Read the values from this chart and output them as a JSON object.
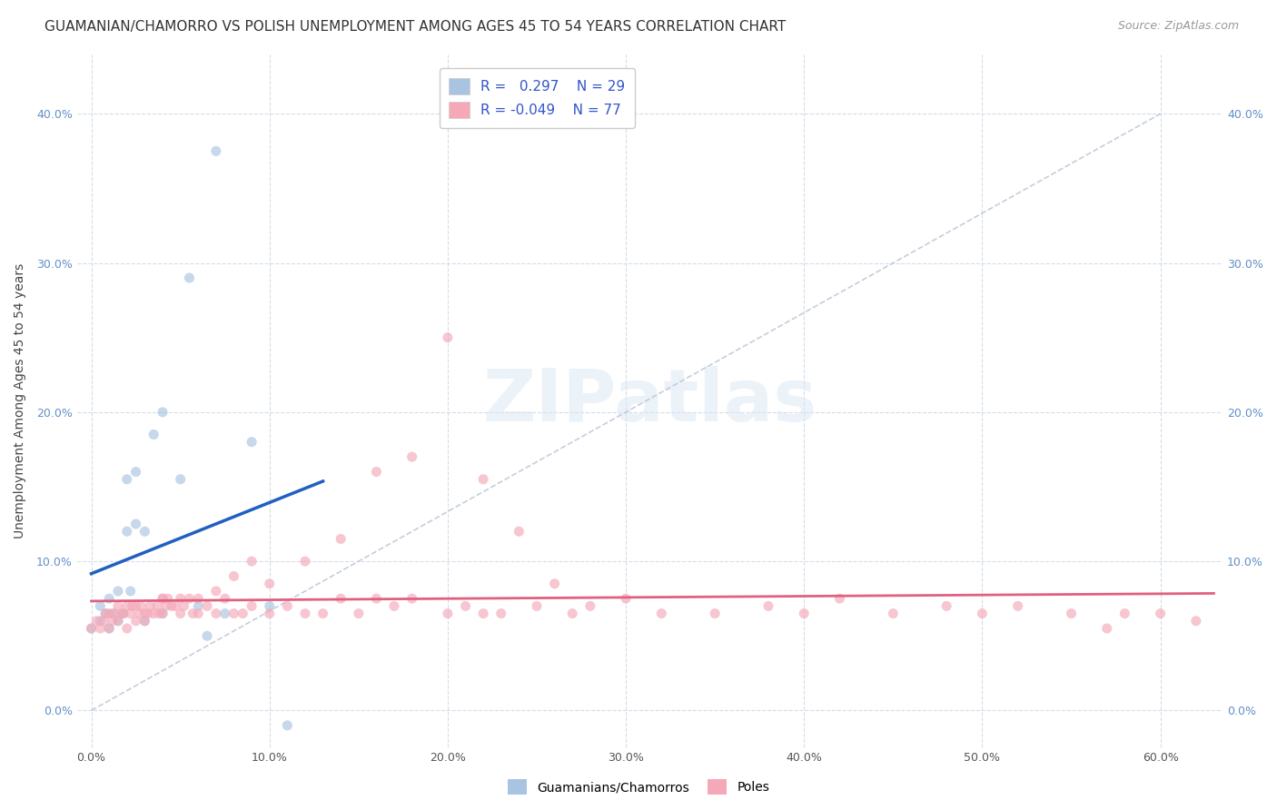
{
  "title": "GUAMANIAN/CHAMORRO VS POLISH UNEMPLOYMENT AMONG AGES 45 TO 54 YEARS CORRELATION CHART",
  "source": "Source: ZipAtlas.com",
  "ylabel": "Unemployment Among Ages 45 to 54 years",
  "ytick_labels": [
    "0.0%",
    "10.0%",
    "20.0%",
    "30.0%",
    "40.0%"
  ],
  "yticks": [
    0.0,
    0.1,
    0.2,
    0.3,
    0.4
  ],
  "xtick_labels": [
    "0.0%",
    "10.0%",
    "20.0%",
    "30.0%",
    "40.0%",
    "50.0%",
    "60.0%"
  ],
  "xticks": [
    0.0,
    0.1,
    0.2,
    0.3,
    0.4,
    0.5,
    0.6
  ],
  "ylim": [
    -0.025,
    0.44
  ],
  "xlim": [
    -0.008,
    0.635
  ],
  "guamanian_color": "#a8c4e0",
  "polish_color": "#f4a8b8",
  "trend_guamanian_color": "#2060c0",
  "trend_polish_color": "#e06080",
  "diagonal_color": "#c0c8d8",
  "background_color": "#ffffff",
  "grid_color": "#d0d8e8",
  "legend_R_guamanian": "0.297",
  "legend_N_guamanian": "29",
  "legend_R_polish": "-0.049",
  "legend_N_polish": "77",
  "watermark": "ZIPatlas",
  "guamanian_x": [
    0.0,
    0.005,
    0.005,
    0.008,
    0.01,
    0.01,
    0.012,
    0.015,
    0.015,
    0.018,
    0.02,
    0.02,
    0.022,
    0.025,
    0.025,
    0.03,
    0.03,
    0.035,
    0.04,
    0.04,
    0.05,
    0.055,
    0.06,
    0.065,
    0.07,
    0.075,
    0.09,
    0.1,
    0.11
  ],
  "guamanian_y": [
    0.055,
    0.06,
    0.07,
    0.065,
    0.055,
    0.075,
    0.065,
    0.06,
    0.08,
    0.065,
    0.12,
    0.155,
    0.08,
    0.125,
    0.16,
    0.06,
    0.12,
    0.185,
    0.065,
    0.2,
    0.155,
    0.29,
    0.07,
    0.05,
    0.375,
    0.065,
    0.18,
    0.07,
    -0.01
  ],
  "polish_x": [
    0.0,
    0.003,
    0.005,
    0.007,
    0.008,
    0.01,
    0.01,
    0.012,
    0.013,
    0.015,
    0.015,
    0.017,
    0.018,
    0.02,
    0.02,
    0.022,
    0.023,
    0.025,
    0.025,
    0.027,
    0.028,
    0.03,
    0.03,
    0.032,
    0.033,
    0.035,
    0.037,
    0.038,
    0.04,
    0.04,
    0.042,
    0.043,
    0.045,
    0.047,
    0.05,
    0.05,
    0.052,
    0.055,
    0.057,
    0.06,
    0.06,
    0.065,
    0.07,
    0.075,
    0.08,
    0.085,
    0.09,
    0.1,
    0.11,
    0.12,
    0.13,
    0.14,
    0.15,
    0.16,
    0.17,
    0.18,
    0.2,
    0.21,
    0.22,
    0.23,
    0.25,
    0.27,
    0.3,
    0.32,
    0.35,
    0.38,
    0.4,
    0.42,
    0.45,
    0.48,
    0.5,
    0.52,
    0.55,
    0.57,
    0.58,
    0.6,
    0.62
  ],
  "polish_y": [
    0.055,
    0.06,
    0.055,
    0.06,
    0.065,
    0.055,
    0.065,
    0.06,
    0.065,
    0.06,
    0.07,
    0.065,
    0.065,
    0.055,
    0.07,
    0.065,
    0.07,
    0.06,
    0.07,
    0.065,
    0.07,
    0.06,
    0.065,
    0.065,
    0.07,
    0.065,
    0.07,
    0.065,
    0.065,
    0.075,
    0.07,
    0.075,
    0.07,
    0.07,
    0.065,
    0.075,
    0.07,
    0.075,
    0.065,
    0.065,
    0.075,
    0.07,
    0.065,
    0.075,
    0.065,
    0.065,
    0.07,
    0.065,
    0.07,
    0.065,
    0.065,
    0.075,
    0.065,
    0.075,
    0.07,
    0.075,
    0.065,
    0.07,
    0.065,
    0.065,
    0.07,
    0.065,
    0.075,
    0.065,
    0.065,
    0.07,
    0.065,
    0.075,
    0.065,
    0.07,
    0.065,
    0.07,
    0.065,
    0.055,
    0.065,
    0.065,
    0.06
  ],
  "polish_x_extra": [
    0.04,
    0.07,
    0.08,
    0.09,
    0.1,
    0.12,
    0.14,
    0.16,
    0.18,
    0.2,
    0.22,
    0.24,
    0.26,
    0.28
  ],
  "polish_y_extra": [
    0.075,
    0.08,
    0.09,
    0.1,
    0.085,
    0.1,
    0.115,
    0.16,
    0.17,
    0.25,
    0.155,
    0.12,
    0.085,
    0.07
  ],
  "marker_size": 8,
  "marker_alpha": 0.65,
  "title_fontsize": 11,
  "label_fontsize": 10,
  "tick_fontsize": 9,
  "legend_fontsize": 11
}
